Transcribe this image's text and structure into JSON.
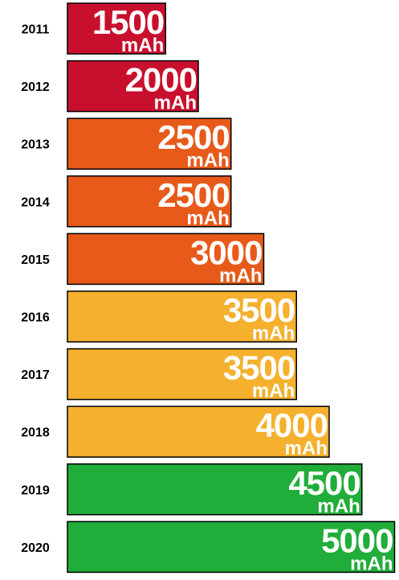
{
  "chart_data": {
    "type": "bar",
    "orientation": "horizontal",
    "categories": [
      "2011",
      "2012",
      "2013",
      "2014",
      "2015",
      "2016",
      "2017",
      "2018",
      "2019",
      "2020"
    ],
    "values": [
      1500,
      2000,
      2500,
      2500,
      3000,
      3500,
      3500,
      4000,
      4500,
      5000
    ],
    "unit": "mAh",
    "title": "",
    "xlabel": "",
    "ylabel": "",
    "grid": false,
    "bar_colors": [
      "#c8102e",
      "#c8102e",
      "#e85a1a",
      "#e85a1a",
      "#e85a1a",
      "#f5b02e",
      "#f5b02e",
      "#f5b02e",
      "#21ad3a",
      "#21ad3a"
    ],
    "bar_border_color": "#000000"
  }
}
